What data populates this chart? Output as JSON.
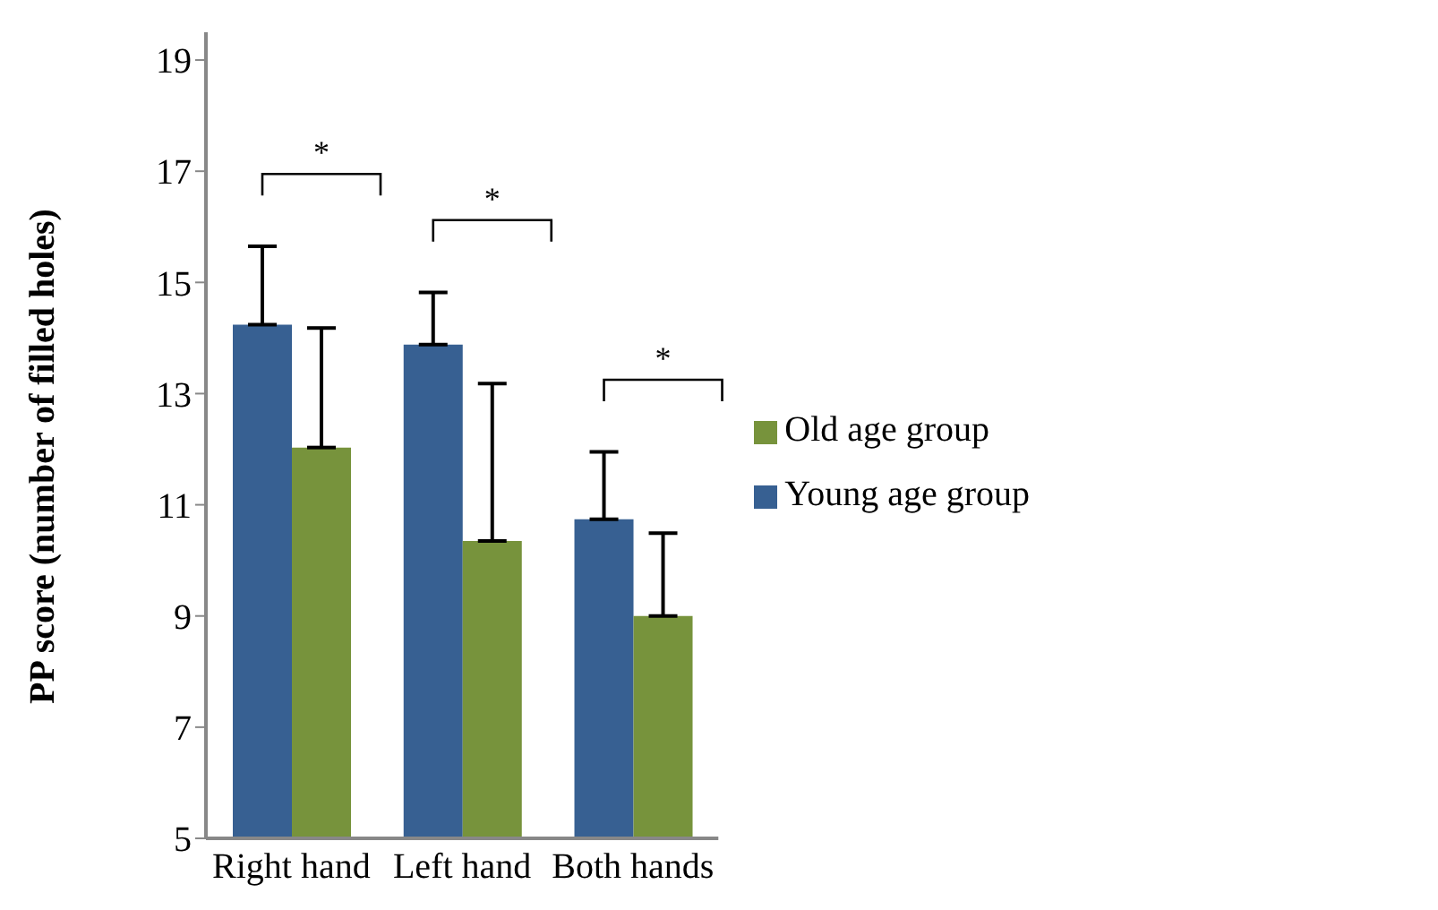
{
  "chart_data": {
    "type": "bar",
    "ylabel": "PP score (number of filled holes)",
    "categories": [
      "Right hand",
      "Left hand",
      "Both hands"
    ],
    "series": [
      {
        "name": "Young age group",
        "color": "#376092",
        "values": [
          14.24,
          13.88,
          10.74
        ],
        "errors": [
          [
            14.24,
            15.65
          ],
          [
            13.88,
            14.82
          ],
          [
            10.74,
            11.95
          ]
        ]
      },
      {
        "name": "Old age group",
        "color": "#77933c",
        "values": [
          12.03,
          10.35,
          9.0
        ],
        "errors": [
          [
            12.03,
            14.18
          ],
          [
            10.35,
            13.18
          ],
          [
            9.0,
            10.49
          ]
        ]
      }
    ],
    "ylim": [
      5,
      19.5
    ],
    "yticks": [
      5,
      7,
      9,
      11,
      13,
      15,
      17,
      19
    ],
    "grid": false,
    "legend": "right",
    "annotations": [
      "*",
      "*",
      "*"
    ]
  }
}
